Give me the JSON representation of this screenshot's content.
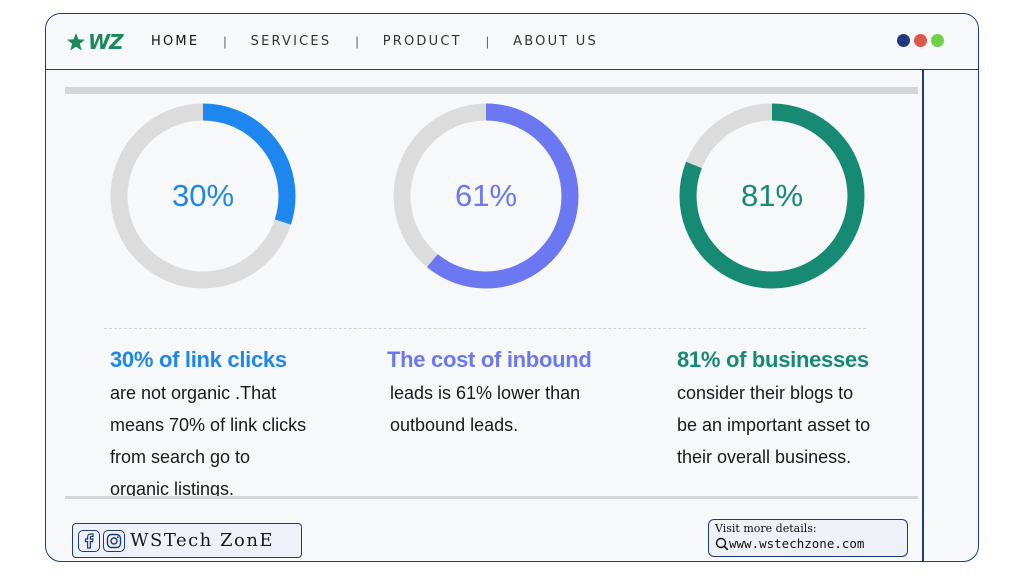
{
  "logo": {
    "text": "WZ",
    "icon": "star-icon",
    "color": "#1b8a5a"
  },
  "nav": {
    "items": [
      "HOME",
      "SERVICES",
      "PRODUCT",
      "ABOUT US"
    ],
    "separator": "|"
  },
  "window_dots": [
    "#1e3a7b",
    "#e0564a",
    "#6fd14a"
  ],
  "stats": [
    {
      "percent_label": "30%",
      "value": 30,
      "color": "#1e87ef",
      "headline": "30% of link clicks",
      "body": [
        "are not organic .That",
        "means 70% of link clicks",
        "from search go to",
        "organic listings."
      ]
    },
    {
      "percent_label": "61%",
      "value": 61,
      "color": "#6b78f2",
      "headline": "The cost of inbound",
      "body": [
        "leads is 61% lower than",
        "outbound leads."
      ]
    },
    {
      "percent_label": "81%",
      "value": 81,
      "color": "#168a72",
      "headline": "81% of businesses",
      "body": [
        "consider their blogs to",
        "be an important asset to",
        "their overall business."
      ]
    }
  ],
  "track_color": "#dcdcdc",
  "footer": {
    "brand": "WSTech ZonE",
    "social_icons": [
      "facebook-icon",
      "instagram-icon"
    ],
    "visit_title": "Visit more details:",
    "visit_url": "www.wstechzone.com"
  }
}
